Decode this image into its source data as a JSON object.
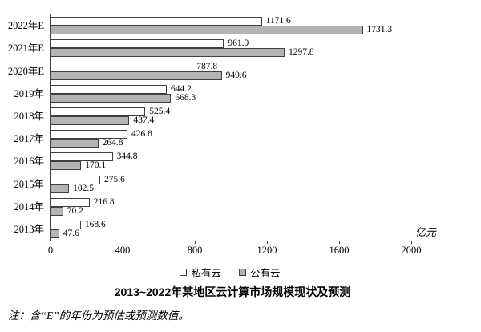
{
  "chart_data": {
    "type": "bar",
    "orientation": "horizontal",
    "title": "2013~2022年某地区云计算市场规模现状及预测",
    "unit_label": "亿元",
    "categories": [
      "2022年E",
      "2021年E",
      "2020年E",
      "2019年",
      "2018年",
      "2017年",
      "2016年",
      "2015年",
      "2014年",
      "2013年"
    ],
    "series": [
      {
        "name": "私有云",
        "color": "#ffffff",
        "values": [
          1171.6,
          961.9,
          787.8,
          644.2,
          525.4,
          426.8,
          344.8,
          275.6,
          216.8,
          168.6
        ]
      },
      {
        "name": "公有云",
        "color": "#b4b4b4",
        "values": [
          1731.3,
          1297.8,
          949.6,
          668.3,
          437.4,
          264.8,
          170.1,
          102.5,
          70.2,
          47.6
        ]
      }
    ],
    "xlim": [
      0,
      2000
    ],
    "x_ticks": [
      0,
      400,
      800,
      1200,
      1600,
      2000
    ],
    "grid": false,
    "legend_position": "bottom",
    "data_labels": true
  },
  "note": "注：含“E”的年份为预估或预测数值。",
  "colors": {
    "axis": "#404040",
    "bar_border": "#3f3f3f",
    "private_fill": "#ffffff",
    "public_fill": "#b4b4b4",
    "text": "#000000",
    "background": "#ffffff"
  }
}
